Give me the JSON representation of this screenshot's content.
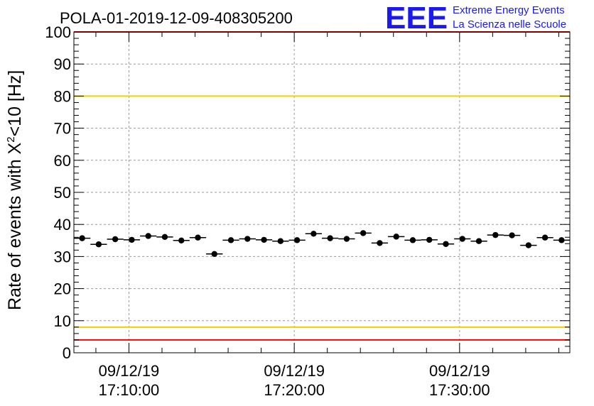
{
  "header": {
    "title": "POLA-01-2019-12-09-408305200",
    "logo_mark": "EEE",
    "logo_line1": "Extreme Energy Events",
    "logo_line2": "La Scienza nelle Scuole"
  },
  "colors": {
    "logo": "#1a1aee",
    "marker": "#000000",
    "red_limit": "#ff0000",
    "yellow_limit": "#f0d000",
    "grid": "#9a9a9a"
  },
  "chart_data": {
    "type": "scatter",
    "ylabel_main": "Rate of events with X",
    "ylabel_sup": "2",
    "ylabel_tail": "<10 [Hz]",
    "ylim": [
      0,
      100
    ],
    "yticks": [
      "0",
      "10",
      "20",
      "30",
      "40",
      "50",
      "60",
      "70",
      "80",
      "90",
      "100"
    ],
    "xlim_minutes": [
      0,
      30
    ],
    "xtick_labels": [
      {
        "t": 3.33,
        "date": "09/12/19",
        "time": "17:10:00"
      },
      {
        "t": 13.33,
        "date": "09/12/19",
        "time": "17:20:00"
      },
      {
        "t": 23.33,
        "date": "09/12/19",
        "time": "17:30:00"
      }
    ],
    "grid": true,
    "bin_width_minutes": 1,
    "points": [
      35.7,
      33.8,
      35.4,
      35.2,
      36.4,
      36.1,
      35.0,
      35.9,
      30.8,
      35.1,
      35.5,
      35.2,
      34.8,
      35.1,
      37.1,
      35.7,
      35.5,
      37.3,
      34.2,
      36.2,
      35.1,
      35.2,
      33.9,
      35.5,
      34.8,
      36.7,
      36.6,
      33.5,
      35.9,
      35.1
    ],
    "reference_lines": [
      {
        "value": 100,
        "color": "red"
      },
      {
        "value": 80,
        "color": "yellow"
      },
      {
        "value": 8,
        "color": "yellow"
      },
      {
        "value": 4,
        "color": "red"
      }
    ]
  }
}
